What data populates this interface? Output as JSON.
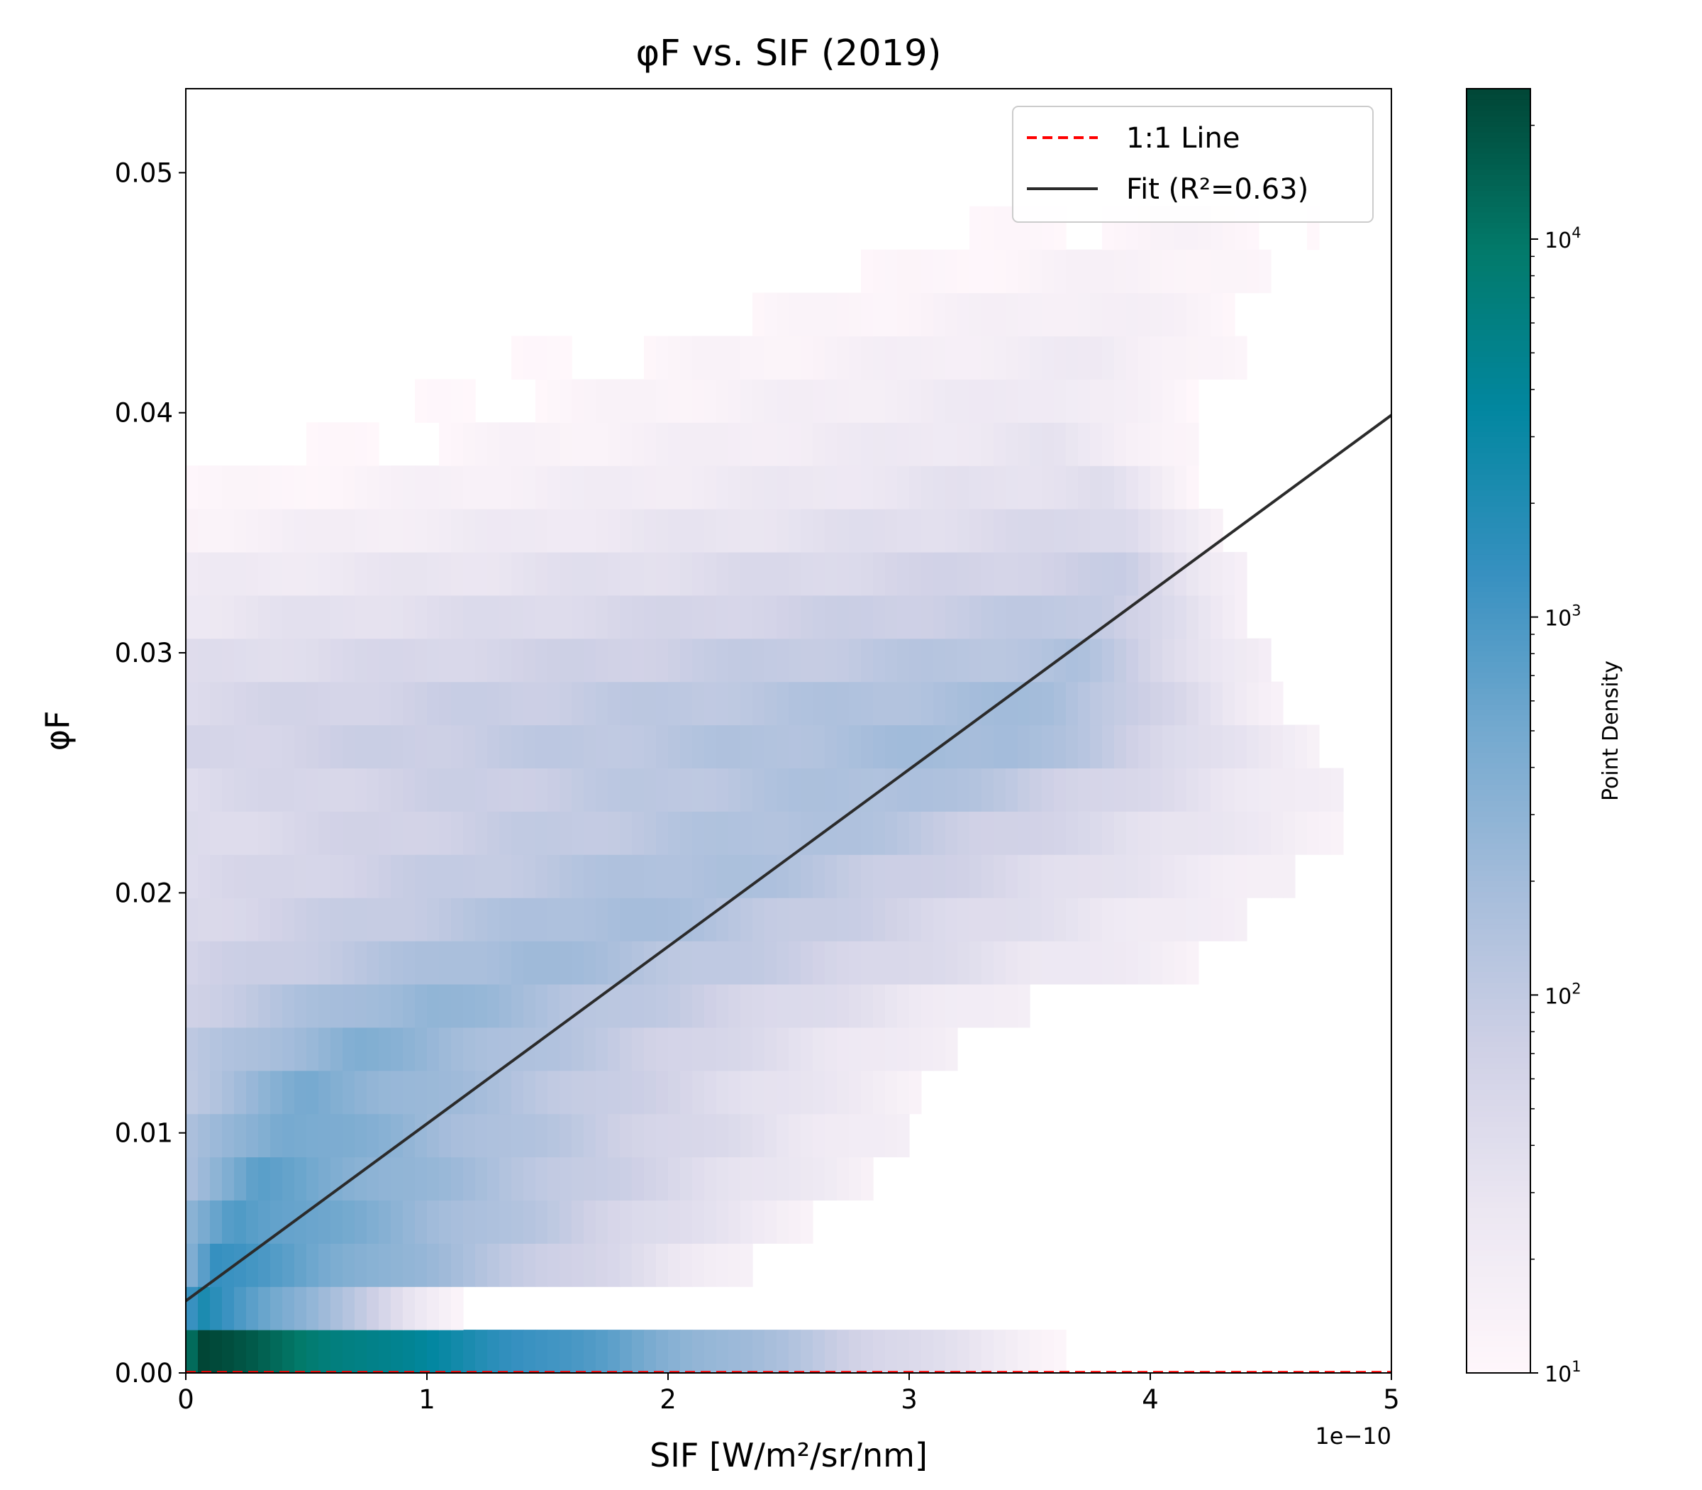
{
  "chart_data": {
    "type": "heatmap",
    "title": "φF vs. SIF (2019)",
    "xlabel": "SIF [W/m²/sr/nm]",
    "ylabel": "φF",
    "x_offset_label": "1e−10",
    "x_scale_factor": 1e-10,
    "xlim": [
      0,
      5
    ],
    "ylim": [
      0,
      0.0535
    ],
    "x_ticks": [
      0,
      1,
      2,
      3,
      4,
      5
    ],
    "x_tick_labels": [
      "0",
      "1",
      "2",
      "3",
      "4",
      "5"
    ],
    "y_ticks": [
      0,
      0.01,
      0.02,
      0.03,
      0.04,
      0.05
    ],
    "y_tick_labels": [
      "0.00",
      "0.01",
      "0.02",
      "0.03",
      "0.04",
      "0.05"
    ],
    "grid": false,
    "legend_position": "upper right",
    "legend": [
      {
        "label": "1:1 Line",
        "style": "dashed",
        "color": "#ff0000"
      },
      {
        "label": "Fit (R²=0.63)",
        "style": "solid",
        "color": "#2b2b2b"
      }
    ],
    "one_to_one_line": {
      "x": [
        0,
        5
      ],
      "y": [
        0,
        5e-10
      ]
    },
    "fit_line": {
      "x": [
        0,
        5
      ],
      "y": [
        0.003,
        0.0399
      ],
      "r_squared": 0.63
    },
    "colorbar": {
      "label": "Point Density",
      "scale": "log",
      "range": [
        10,
        25000
      ],
      "ticks": [
        {
          "value": 10,
          "base": "10",
          "exp": "1"
        },
        {
          "value": 100,
          "base": "10",
          "exp": "2"
        },
        {
          "value": 1000,
          "base": "10",
          "exp": "3"
        },
        {
          "value": 10000,
          "base": "10",
          "exp": "4"
        }
      ],
      "colors": [
        "#fff7fb",
        "#ece7f2",
        "#d0d1e6",
        "#a6bddb",
        "#74a9cf",
        "#3690c0",
        "#0287a0",
        "#027a6a",
        "#014636"
      ]
    },
    "density_bands": [
      {
        "y": [
          0.0,
          0.0018
        ],
        "x_end": 3.65,
        "peak_x": 0.05,
        "peak_density": 25000,
        "end_density": 12
      },
      {
        "y": [
          0.0018,
          0.0036
        ],
        "x_end": 1.15,
        "peak_x": 0.05,
        "peak_density": 2500,
        "end_density": 12
      },
      {
        "y": [
          0.0036,
          0.0054
        ],
        "x_end": 2.35,
        "peak_x": 0.12,
        "peak_density": 1300,
        "end_density": 15
      },
      {
        "y": [
          0.0054,
          0.0072
        ],
        "x_end": 2.6,
        "peak_x": 0.2,
        "peak_density": 1000,
        "end_density": 15
      },
      {
        "y": [
          0.0072,
          0.009
        ],
        "x_end": 2.85,
        "peak_x": 0.3,
        "peak_density": 700,
        "end_density": 15
      },
      {
        "y": [
          0.009,
          0.0108
        ],
        "x_end": 3.0,
        "peak_x": 0.4,
        "peak_density": 550,
        "end_density": 15
      },
      {
        "y": [
          0.0108,
          0.0126
        ],
        "x_end": 3.05,
        "peak_x": 0.5,
        "peak_density": 450,
        "end_density": 15
      },
      {
        "y": [
          0.0126,
          0.0144
        ],
        "x_end": 3.2,
        "peak_x": 0.7,
        "peak_density": 380,
        "end_density": 15
      },
      {
        "y": [
          0.0144,
          0.0162
        ],
        "x_end": 3.5,
        "peak_x": 1.0,
        "peak_density": 300,
        "end_density": 15
      },
      {
        "y": [
          0.0162,
          0.018
        ],
        "x_end": 4.2,
        "peak_x": 1.4,
        "peak_density": 230,
        "end_density": 15
      },
      {
        "y": [
          0.018,
          0.0198
        ],
        "x_end": 4.4,
        "peak_x": 1.8,
        "peak_density": 200,
        "end_density": 15
      },
      {
        "y": [
          0.0198,
          0.0216
        ],
        "x_end": 4.6,
        "peak_x": 2.2,
        "peak_density": 180,
        "end_density": 15
      },
      {
        "y": [
          0.0216,
          0.0234
        ],
        "x_end": 4.8,
        "peak_x": 2.6,
        "peak_density": 170,
        "end_density": 15
      },
      {
        "y": [
          0.0234,
          0.0252
        ],
        "x_end": 4.8,
        "peak_x": 3.0,
        "peak_density": 180,
        "end_density": 15
      },
      {
        "y": [
          0.0252,
          0.027
        ],
        "x_end": 4.7,
        "peak_x": 3.4,
        "peak_density": 220,
        "end_density": 15
      },
      {
        "y": [
          0.027,
          0.0288
        ],
        "x_end": 4.55,
        "peak_x": 3.6,
        "peak_density": 200,
        "end_density": 15
      },
      {
        "y": [
          0.0288,
          0.0306
        ],
        "x_end": 4.5,
        "peak_x": 3.7,
        "peak_density": 150,
        "end_density": 15
      },
      {
        "y": [
          0.0306,
          0.0324
        ],
        "x_end": 4.4,
        "peak_x": 3.8,
        "peak_density": 110,
        "end_density": 15
      },
      {
        "y": [
          0.0324,
          0.0342
        ],
        "x_end": 4.4,
        "peak_x": 3.9,
        "peak_density": 80,
        "end_density": 15
      },
      {
        "y": [
          0.0342,
          0.036
        ],
        "x_end": 4.3,
        "peak_x": 3.9,
        "peak_density": 55,
        "end_density": 12
      },
      {
        "y": [
          0.036,
          0.0378
        ],
        "x_end": 4.2,
        "peak_x": 3.8,
        "peak_density": 40,
        "end_density": 11
      },
      {
        "y": [
          0.0378,
          0.0396
        ],
        "x_end": 4.2,
        "peak_x": 3.6,
        "peak_density": 30,
        "end_density": 11
      },
      {
        "y": [
          0.0396,
          0.0414
        ],
        "x_end": 4.2,
        "peak_x": 3.6,
        "peak_density": 25,
        "end_density": 10
      },
      {
        "y": [
          0.0414,
          0.0432
        ],
        "x_end": 4.4,
        "peak_x": 3.8,
        "peak_density": 22,
        "end_density": 10
      },
      {
        "y": [
          0.0432,
          0.045
        ],
        "x_end": 4.5,
        "peak_x": 3.8,
        "peak_density": 18,
        "end_density": 10
      },
      {
        "y": [
          0.045,
          0.0468
        ],
        "x_end": 4.5,
        "peak_x": 4.0,
        "peak_density": 15,
        "end_density": 10
      },
      {
        "y": [
          0.0468,
          0.0486
        ],
        "x_end": 4.7,
        "peak_x": 4.2,
        "peak_density": 13,
        "end_density": 10
      }
    ]
  }
}
